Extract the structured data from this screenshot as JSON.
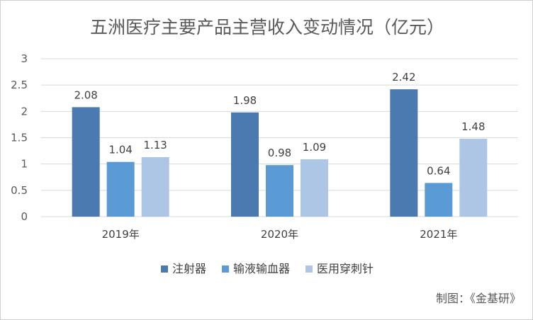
{
  "chart_data": {
    "type": "bar",
    "title": "五洲医疗主要产品主营收入变动情况（亿元）",
    "categories": [
      "2019年",
      "2020年",
      "2021年"
    ],
    "series": [
      {
        "name": "注射器",
        "values": [
          2.08,
          1.98,
          2.42
        ],
        "color": "#4a7ab0"
      },
      {
        "name": "输液输血器",
        "values": [
          1.04,
          0.98,
          0.64
        ],
        "color": "#5b9bd5"
      },
      {
        "name": "医用穿刺针",
        "values": [
          1.13,
          1.09,
          1.48
        ],
        "color": "#adc6e6"
      }
    ],
    "ylim": [
      0,
      3
    ],
    "yticks": [
      "0",
      "0.5",
      "1",
      "1.5",
      "2",
      "2.5",
      "3"
    ],
    "grid": true,
    "legend": "bottom",
    "data_labels": true
  },
  "credit": "制图：《金基研》"
}
